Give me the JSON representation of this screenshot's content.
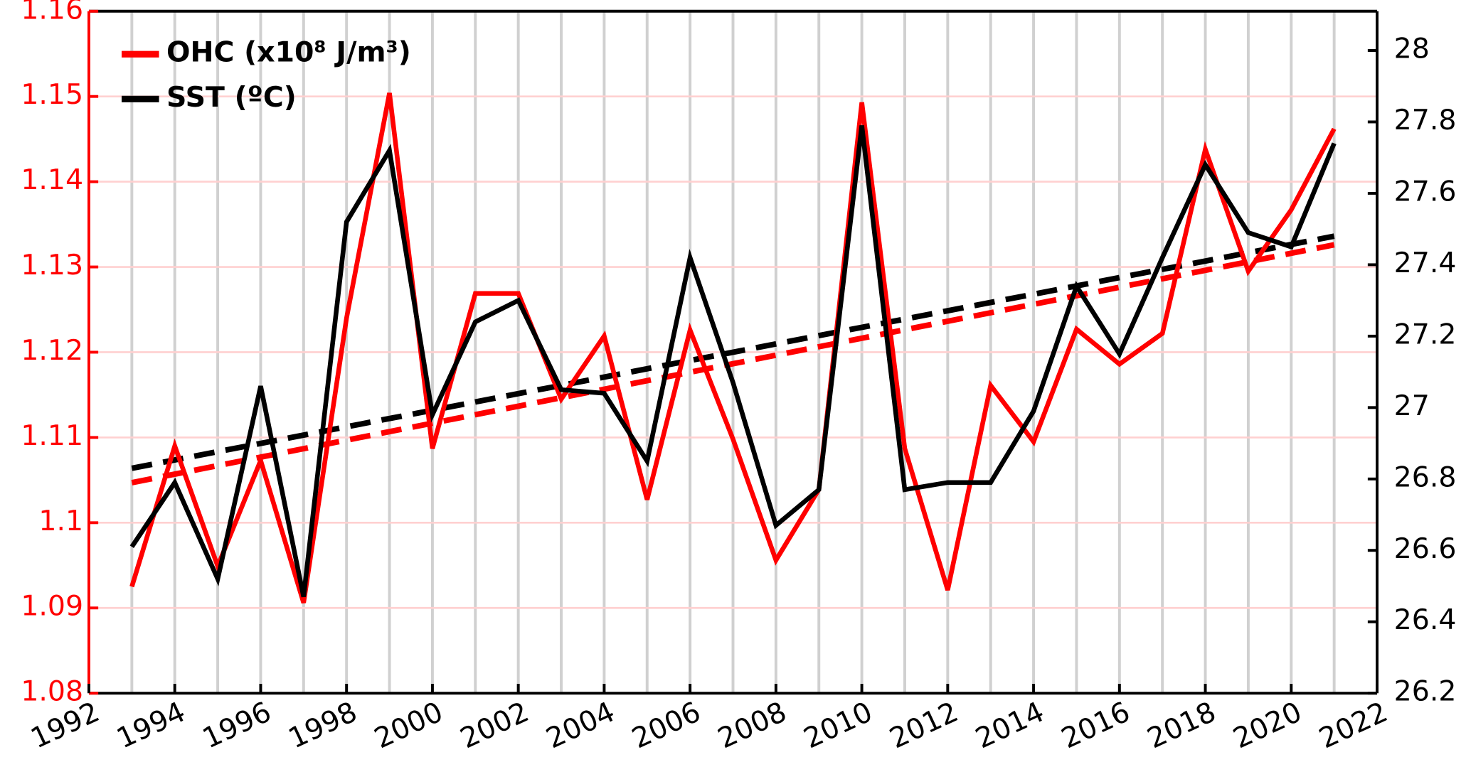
{
  "chart_data": {
    "type": "line",
    "x": [
      1993,
      1994,
      1995,
      1996,
      1997,
      1998,
      1999,
      2000,
      2001,
      2002,
      2003,
      2004,
      2005,
      2006,
      2007,
      2008,
      2009,
      2010,
      2011,
      2012,
      2013,
      2014,
      2015,
      2016,
      2017,
      2018,
      2019,
      2020,
      2021
    ],
    "series": [
      {
        "name": "OHC (x10⁸ J/m³)",
        "color": "#ff0000",
        "axis": "y",
        "values": [
          1.0925,
          1.109,
          1.0949,
          1.1073,
          1.0906,
          1.124,
          1.1504,
          1.1087,
          1.1269,
          1.1269,
          1.1145,
          1.1219,
          1.1027,
          1.1226,
          1.1098,
          1.0956,
          1.1039,
          1.1493,
          1.1087,
          1.0921,
          1.1161,
          1.1095,
          1.1227,
          1.1186,
          1.1222,
          1.1438,
          1.1295,
          1.1367,
          1.1462
        ]
      },
      {
        "name": "SST (ºC)",
        "color": "#000000",
        "axis": "y2",
        "values": [
          26.61,
          26.79,
          26.52,
          27.06,
          26.47,
          27.52,
          27.72,
          26.98,
          27.24,
          27.3,
          27.05,
          27.04,
          26.85,
          27.42,
          27.07,
          26.67,
          26.77,
          27.79,
          26.77,
          26.79,
          26.79,
          26.99,
          27.34,
          27.15,
          27.42,
          27.68,
          27.49,
          27.45,
          27.74
        ]
      }
    ],
    "trends": [
      {
        "color": "#ff0000",
        "axis": "y",
        "x": [
          1993,
          2021
        ],
        "values": [
          1.1047,
          1.1326
        ]
      },
      {
        "color": "#000000",
        "axis": "y2",
        "x": [
          1993,
          2021
        ],
        "values": [
          26.83,
          27.48
        ]
      }
    ],
    "xlim": [
      1992,
      2022
    ],
    "xticks": [
      1992,
      1994,
      1996,
      1998,
      2000,
      2002,
      2004,
      2006,
      2008,
      2010,
      2012,
      2014,
      2016,
      2018,
      2020,
      2022
    ],
    "ylim": [
      1.08,
      1.16
    ],
    "yticks": [
      1.08,
      1.09,
      1.1,
      1.11,
      1.12,
      1.13,
      1.14,
      1.15,
      1.16
    ],
    "y2lim": [
      26.2,
      28.11
    ],
    "y2ticks": [
      26.2,
      26.4,
      26.6,
      26.8,
      27,
      27.2,
      27.4,
      27.6,
      27.8,
      28
    ],
    "y_axis_color": "#ff0000",
    "grid": true,
    "legend": "upper left"
  }
}
